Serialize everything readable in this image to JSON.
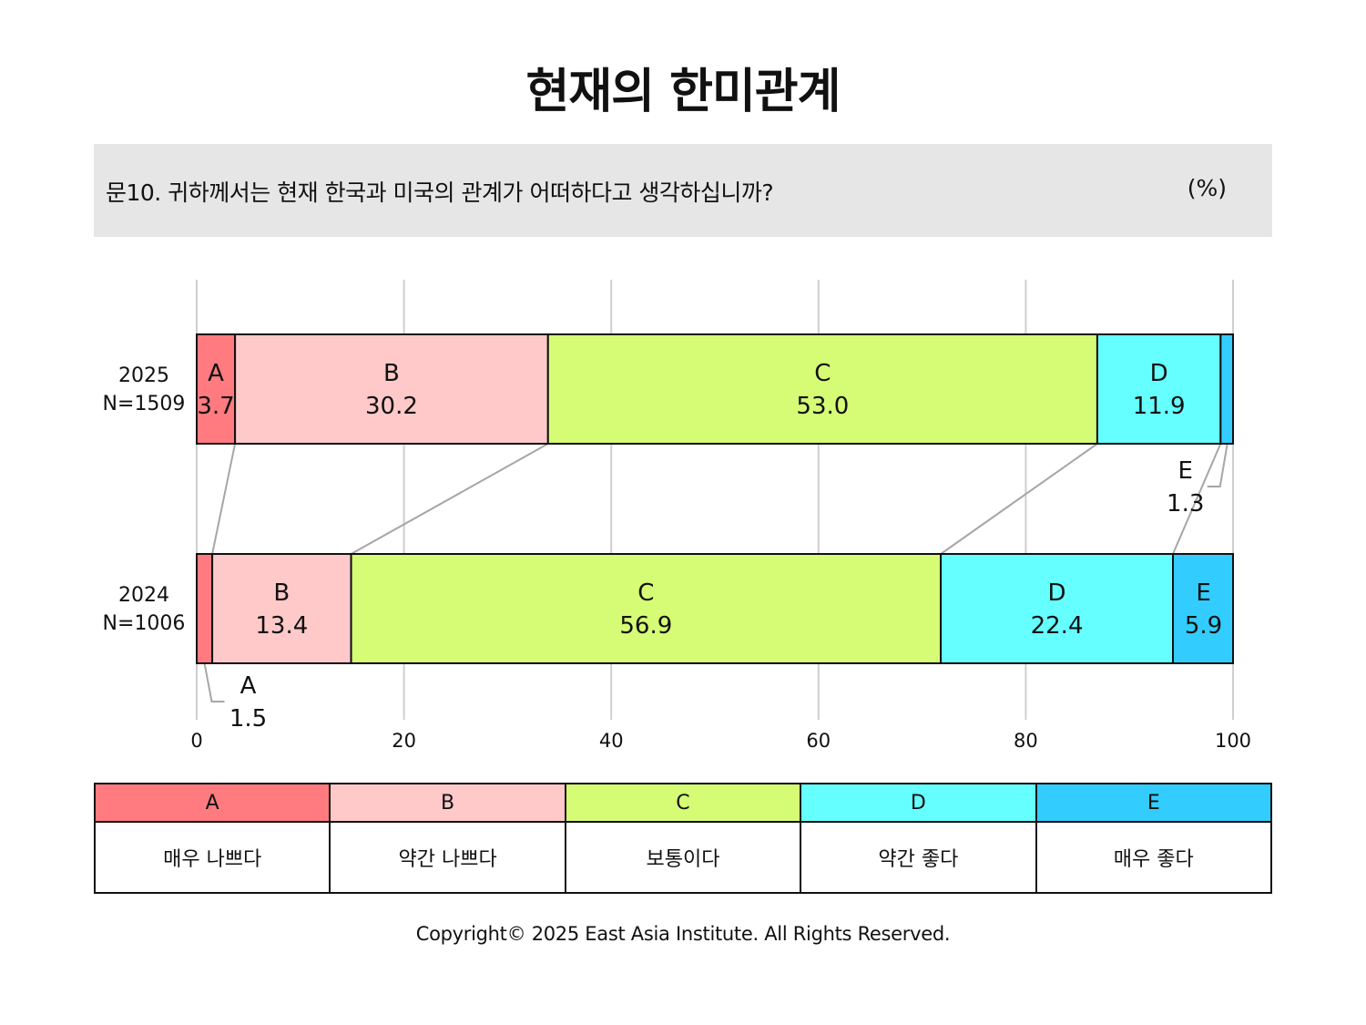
{
  "title": "현재의 한미관계",
  "question": "문10. 귀하께서는 현재 한국과 미국의 관계가 어떠하다고 생각하십니까?",
  "unit": "(%)",
  "copyright": "Copyright© 2025 East Asia Institute. All Rights Reserved.",
  "chart_data": {
    "type": "bar",
    "orientation": "horizontal-stacked-100",
    "xlim": [
      0,
      100
    ],
    "xticks": [
      0,
      20,
      40,
      60,
      80,
      100
    ],
    "grid": true,
    "categories": [
      {
        "year": "2025",
        "n": "N=1509"
      },
      {
        "year": "2024",
        "n": "N=1006"
      }
    ],
    "series": [
      {
        "name": "A",
        "values": [
          3.7,
          1.5
        ],
        "color": "#ff7b7f"
      },
      {
        "name": "B",
        "values": [
          30.2,
          13.4
        ],
        "color": "#ffc9ca"
      },
      {
        "name": "C",
        "values": [
          53.0,
          56.9
        ],
        "color": "#d6fc75"
      },
      {
        "name": "D",
        "values": [
          11.9,
          22.4
        ],
        "color": "#66ffff"
      },
      {
        "name": "E",
        "values": [
          1.3,
          5.9
        ],
        "color": "#33ccff"
      }
    ],
    "value_labels": [
      [
        "3.7",
        "30.2",
        "53.0",
        "11.9",
        "1.3"
      ],
      [
        "1.5",
        "13.4",
        "56.9",
        "22.4",
        "5.9"
      ]
    ]
  },
  "legend": [
    {
      "code": "A",
      "label": "매우 나쁘다",
      "color": "#ff7b7f"
    },
    {
      "code": "B",
      "label": "약간 나쁘다",
      "color": "#ffc9ca"
    },
    {
      "code": "C",
      "label": "보통이다",
      "color": "#d6fc75"
    },
    {
      "code": "D",
      "label": "약간 좋다",
      "color": "#66ffff"
    },
    {
      "code": "E",
      "label": "매우 좋다",
      "color": "#33ccff"
    }
  ]
}
